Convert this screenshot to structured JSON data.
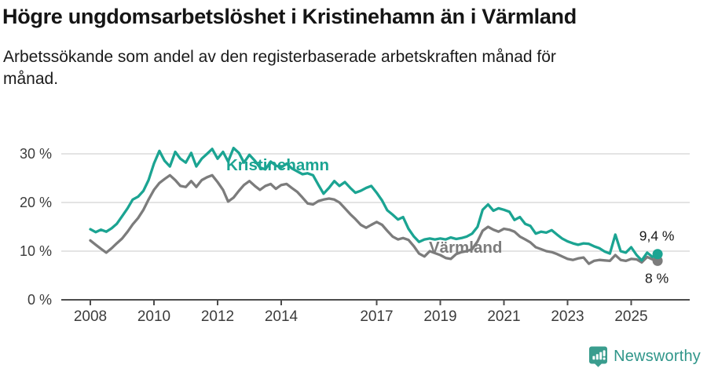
{
  "header": {
    "title": "Högre ungdomsarbetslöshet i Kristinehamn än i Värmland",
    "subtitle": "Arbetssökande som andel av den registerbaserade arbetskraften månad för månad."
  },
  "chart_data": {
    "type": "line",
    "title": "Högre ungdomsarbetslöshet i Kristinehamn än i Värmland",
    "subtitle": "Arbetssökande som andel av den registerbaserade arbetskraften månad för månad.",
    "unit": "%",
    "grid": "horizontal",
    "legend_position": "inline-labels",
    "ylim": [
      0,
      33
    ],
    "x_ticks": [
      "2008",
      "2010",
      "2012",
      "2014",
      "2017",
      "2019",
      "2021",
      "2023",
      "2025"
    ],
    "x_tick_years": [
      2008,
      2010,
      2012,
      2014,
      2017,
      2019,
      2021,
      2023,
      2025
    ],
    "y_ticks": [
      {
        "value": 0,
        "label": "0 %"
      },
      {
        "value": 10,
        "label": "10 %"
      },
      {
        "value": 20,
        "label": "20 %"
      },
      {
        "value": 30,
        "label": "30 %"
      }
    ],
    "x": [
      2008,
      2008.17,
      2008.33,
      2008.5,
      2008.67,
      2008.83,
      2009,
      2009.17,
      2009.33,
      2009.5,
      2009.67,
      2009.83,
      2010,
      2010.17,
      2010.33,
      2010.5,
      2010.67,
      2010.83,
      2011,
      2011.17,
      2011.33,
      2011.5,
      2011.67,
      2011.83,
      2012,
      2012.17,
      2012.33,
      2012.5,
      2012.67,
      2012.83,
      2013,
      2013.17,
      2013.33,
      2013.5,
      2013.67,
      2013.83,
      2014,
      2014.17,
      2014.33,
      2014.5,
      2014.67,
      2014.83,
      2015,
      2015.17,
      2015.33,
      2015.5,
      2015.67,
      2015.83,
      2016,
      2016.17,
      2016.33,
      2016.5,
      2016.67,
      2016.83,
      2017,
      2017.17,
      2017.33,
      2017.5,
      2017.67,
      2017.83,
      2018,
      2018.17,
      2018.33,
      2018.5,
      2018.67,
      2018.83,
      2019,
      2019.17,
      2019.33,
      2019.5,
      2019.67,
      2019.83,
      2020,
      2020.17,
      2020.33,
      2020.5,
      2020.67,
      2020.83,
      2021,
      2021.17,
      2021.33,
      2021.5,
      2021.67,
      2021.83,
      2022,
      2022.17,
      2022.33,
      2022.5,
      2022.67,
      2022.83,
      2023,
      2023.17,
      2023.33,
      2023.5,
      2023.67,
      2023.83,
      2024,
      2024.17,
      2024.33,
      2024.5,
      2024.67,
      2024.83,
      2025,
      2025.17,
      2025.33,
      2025.5,
      2025.67,
      2025.83
    ],
    "series": [
      {
        "name": "Kristinehamn",
        "color": "#1ba492",
        "end_label": "9,4 %",
        "end_value": 9.4,
        "values": [
          14.5,
          13.9,
          14.4,
          14.0,
          14.7,
          15.6,
          17.2,
          18.8,
          20.6,
          21.2,
          22.4,
          24.6,
          28.0,
          30.6,
          28.6,
          27.4,
          30.4,
          29.0,
          28.2,
          30.2,
          27.4,
          29.0,
          30.0,
          31.0,
          29.0,
          30.4,
          28.4,
          31.2,
          30.2,
          28.2,
          29.8,
          28.6,
          27.2,
          26.8,
          28.4,
          27.6,
          27.2,
          28.0,
          27.0,
          26.4,
          25.8,
          26.0,
          25.6,
          23.6,
          21.8,
          23.0,
          24.4,
          23.4,
          24.2,
          23.0,
          22.0,
          22.4,
          23.0,
          23.4,
          22.0,
          20.4,
          18.4,
          17.5,
          16.5,
          17.0,
          14.6,
          13.0,
          11.9,
          12.4,
          12.6,
          12.4,
          12.6,
          12.4,
          12.8,
          12.5,
          12.7,
          13.0,
          13.6,
          15.0,
          18.5,
          19.6,
          18.3,
          18.8,
          18.5,
          18.1,
          16.4,
          17.0,
          15.6,
          15.2,
          13.6,
          14.0,
          13.8,
          14.3,
          13.4,
          12.6,
          12.0,
          11.6,
          11.3,
          11.6,
          11.5,
          11.0,
          10.6,
          9.9,
          9.5,
          13.4,
          10.0,
          9.7,
          10.8,
          9.2,
          8.1,
          9.7,
          8.8,
          9.4
        ]
      },
      {
        "name": "Värmland",
        "color": "#7c7c7c",
        "end_label": "8 %",
        "end_value": 8.0,
        "values": [
          12.2,
          11.3,
          10.5,
          9.7,
          10.6,
          11.6,
          12.6,
          14.0,
          15.5,
          16.8,
          18.5,
          20.6,
          22.6,
          24.0,
          24.8,
          25.6,
          24.6,
          23.4,
          23.2,
          24.4,
          23.2,
          24.6,
          25.2,
          25.6,
          24.2,
          22.6,
          20.2,
          21.0,
          22.4,
          23.6,
          24.4,
          23.4,
          22.6,
          23.4,
          23.8,
          22.8,
          23.6,
          23.8,
          23.0,
          22.2,
          21.0,
          19.8,
          19.6,
          20.3,
          20.6,
          20.8,
          20.6,
          20.0,
          18.8,
          17.6,
          16.6,
          15.4,
          14.8,
          15.4,
          16.0,
          15.4,
          14.2,
          13.0,
          12.4,
          12.7,
          12.3,
          11.0,
          9.5,
          8.9,
          10.0,
          9.6,
          9.2,
          8.6,
          8.4,
          9.4,
          9.8,
          10.0,
          10.4,
          12.0,
          14.2,
          15.0,
          14.4,
          14.0,
          14.6,
          14.4,
          14.0,
          13.0,
          12.4,
          11.8,
          10.8,
          10.4,
          10.0,
          9.8,
          9.4,
          8.9,
          8.4,
          8.2,
          8.5,
          8.7,
          7.4,
          8.0,
          8.2,
          8.1,
          8.0,
          9.2,
          8.2,
          8.0,
          8.4,
          8.3,
          7.7,
          8.8,
          8.3,
          8.0
        ]
      }
    ],
    "colors": {
      "grid": "#dcdcdc",
      "axis": "#4c4c4c",
      "tick_label": "#3c3c3c",
      "end_label_text": "#1a1a1a"
    }
  },
  "footer": {
    "brand": "Newsworthy",
    "brand_color": "#30968a",
    "logo_icon": "newsworthy-pin-barchart-icon"
  }
}
